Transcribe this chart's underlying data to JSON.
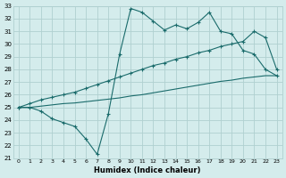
{
  "xlabel": "Humidex (Indice chaleur)",
  "bg_color": "#d4ecec",
  "grid_color": "#b0d0d0",
  "line_color": "#1a6b6b",
  "xlim": [
    -0.5,
    23.5
  ],
  "ylim": [
    21,
    33
  ],
  "xticks": [
    0,
    1,
    2,
    3,
    4,
    5,
    6,
    7,
    8,
    9,
    10,
    11,
    12,
    13,
    14,
    15,
    16,
    17,
    18,
    19,
    20,
    21,
    22,
    23
  ],
  "yticks": [
    21,
    22,
    23,
    24,
    25,
    26,
    27,
    28,
    29,
    30,
    31,
    32,
    33
  ],
  "line1_x": [
    0,
    1,
    2,
    3,
    4,
    5,
    6,
    7,
    8,
    9,
    10,
    11,
    12,
    13,
    14,
    15,
    16,
    17,
    18,
    19,
    20,
    21,
    22,
    23
  ],
  "line1_y": [
    25.0,
    25.0,
    24.7,
    24.1,
    23.8,
    23.5,
    22.5,
    21.3,
    24.5,
    29.2,
    32.8,
    32.5,
    31.8,
    31.1,
    31.5,
    31.2,
    31.7,
    32.5,
    31.0,
    30.8,
    29.5,
    29.2,
    28.0,
    27.5
  ],
  "line2_x": [
    0,
    1,
    2,
    3,
    4,
    5,
    6,
    7,
    8,
    9,
    10,
    11,
    12,
    13,
    14,
    15,
    16,
    17,
    18,
    19,
    20,
    21,
    22,
    23
  ],
  "line2_y": [
    25.0,
    25.3,
    25.6,
    25.8,
    26.0,
    26.2,
    26.5,
    26.8,
    27.1,
    27.4,
    27.7,
    28.0,
    28.3,
    28.5,
    28.8,
    29.0,
    29.3,
    29.5,
    29.8,
    30.0,
    30.2,
    31.0,
    30.5,
    28.0
  ],
  "line3_x": [
    0,
    1,
    2,
    3,
    4,
    5,
    6,
    7,
    8,
    9,
    10,
    11,
    12,
    13,
    14,
    15,
    16,
    17,
    18,
    19,
    20,
    21,
    22,
    23
  ],
  "line3_y": [
    25.0,
    25.0,
    25.1,
    25.2,
    25.3,
    25.35,
    25.45,
    25.55,
    25.65,
    25.75,
    25.9,
    26.0,
    26.15,
    26.3,
    26.45,
    26.6,
    26.75,
    26.9,
    27.05,
    27.15,
    27.3,
    27.4,
    27.5,
    27.5
  ]
}
